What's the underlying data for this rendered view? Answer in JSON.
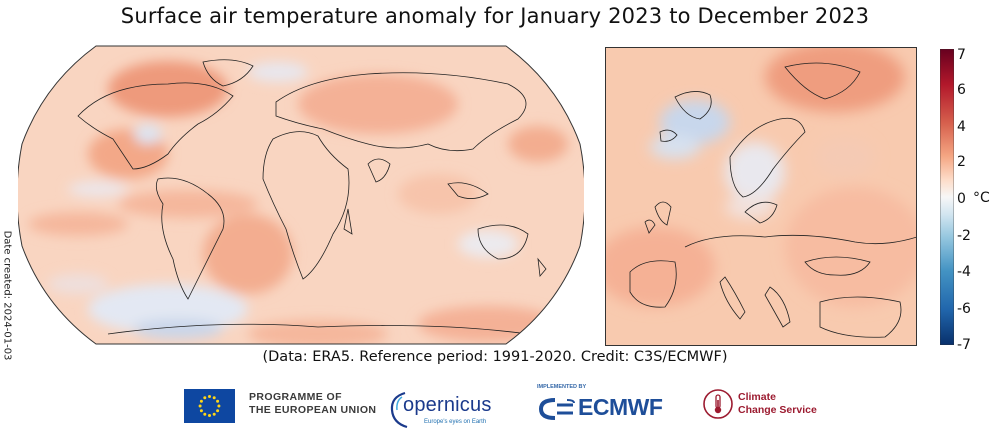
{
  "title": "Surface air temperature anomaly for January 2023 to December 2023",
  "date_created": "Date created: 2024-01-03",
  "credit": "(Data: ERA5.  Reference period: 1991-2020.  Credit: C3S/ECMWF)",
  "colorbar": {
    "unit": "°C",
    "range": [
      -7,
      7
    ],
    "ticks": [
      "7",
      "6",
      "4",
      "2",
      "0",
      "-2",
      "-4",
      "-6",
      "-7"
    ],
    "colors": [
      "#08306b",
      "#2166ac",
      "#4393c3",
      "#92c5de",
      "#d1e5f0",
      "#f7f7f7",
      "#fddbc7",
      "#f4a582",
      "#d6604d",
      "#b2182b",
      "#67001f"
    ]
  },
  "maps": {
    "world_projection": "Robinson",
    "regions": [
      "Global",
      "Europe"
    ]
  },
  "logos": {
    "eu_line1": "PROGRAMME OF",
    "eu_line2": "THE EUROPEAN UNION",
    "copernicus": "opernicus",
    "copernicus_tagline": "Europe's eyes on Earth",
    "implemented_by": "IMPLEMENTED BY",
    "ecmwf": "ECMWF",
    "c3s_line1": "Climate",
    "c3s_line2": "Change Service"
  }
}
